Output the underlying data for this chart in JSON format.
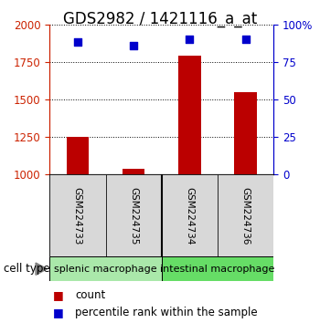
{
  "title": "GDS2982 / 1421116_a_at",
  "samples": [
    "GSM224733",
    "GSM224735",
    "GSM224734",
    "GSM224736"
  ],
  "counts": [
    1250,
    1040,
    1790,
    1545
  ],
  "percentiles": [
    88,
    86,
    90,
    90
  ],
  "groups": [
    {
      "label": "splenic macrophage",
      "samples": [
        0,
        1
      ],
      "color": "#aae8aa"
    },
    {
      "label": "intestinal macrophage",
      "samples": [
        2,
        3
      ],
      "color": "#66dd66"
    }
  ],
  "ylim_left": [
    1000,
    2000
  ],
  "ylim_right": [
    0,
    100
  ],
  "left_ticks": [
    1000,
    1250,
    1500,
    1750,
    2000
  ],
  "right_ticks": [
    0,
    25,
    50,
    75,
    100
  ],
  "right_tick_labels": [
    "0",
    "25",
    "50",
    "75",
    "100%"
  ],
  "bar_color": "#bb0000",
  "scatter_color": "#0000cc",
  "grid_color": "black",
  "left_axis_color": "#cc2200",
  "right_axis_color": "#0000cc",
  "title_fontsize": 12,
  "tick_fontsize": 8.5,
  "legend_fontsize": 8.5,
  "group_label_fontsize": 8,
  "sample_fontsize": 7.5
}
